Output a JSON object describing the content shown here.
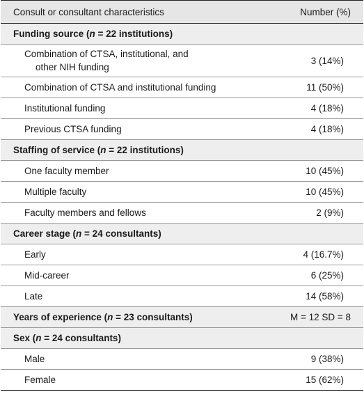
{
  "header": {
    "col1": "Consult or consultant characteristics",
    "col2": "Number (%)"
  },
  "funding": {
    "title_a": "Funding source (",
    "title_n": "n",
    "title_b": " = 22 institutions)",
    "items": [
      {
        "label_line1": "Combination of CTSA, institutional, and",
        "label_line2": "other NIH funding",
        "value": "3 (14%)"
      },
      {
        "label": "Combination of CTSA and institutional funding",
        "value": "11 (50%)"
      },
      {
        "label": "Institutional funding",
        "value": "4 (18%)"
      },
      {
        "label": "Previous CTSA funding",
        "value": "4 (18%)"
      }
    ]
  },
  "staffing": {
    "title_a": "Staffing of service (",
    "title_n": "n",
    "title_b": " = 22 institutions)",
    "items": [
      {
        "label": "One faculty member",
        "value": "10 (45%)"
      },
      {
        "label": "Multiple faculty",
        "value": "10 (45%)"
      },
      {
        "label": "Faculty members and fellows",
        "value": "2 (9%)"
      }
    ]
  },
  "career": {
    "title_a": "Career stage (",
    "title_n": "n",
    "title_b": " = 24 consultants)",
    "items": [
      {
        "label": "Early",
        "value": "4 (16.7%)"
      },
      {
        "label": "Mid-career",
        "value": "6 (25%)"
      },
      {
        "label": "Late",
        "value": "14 (58%)"
      }
    ]
  },
  "experience": {
    "title_a": "Years of experience (",
    "title_n": "n",
    "title_b": " = 23 consultants)",
    "value": "M = 12 SD = 8"
  },
  "sex": {
    "title_a": "Sex (",
    "title_n": "n",
    "title_b": " = 24 consultants)",
    "items": [
      {
        "label": "Male",
        "value": "9 (38%)"
      },
      {
        "label": "Female",
        "value": "15 (62%)"
      }
    ]
  }
}
